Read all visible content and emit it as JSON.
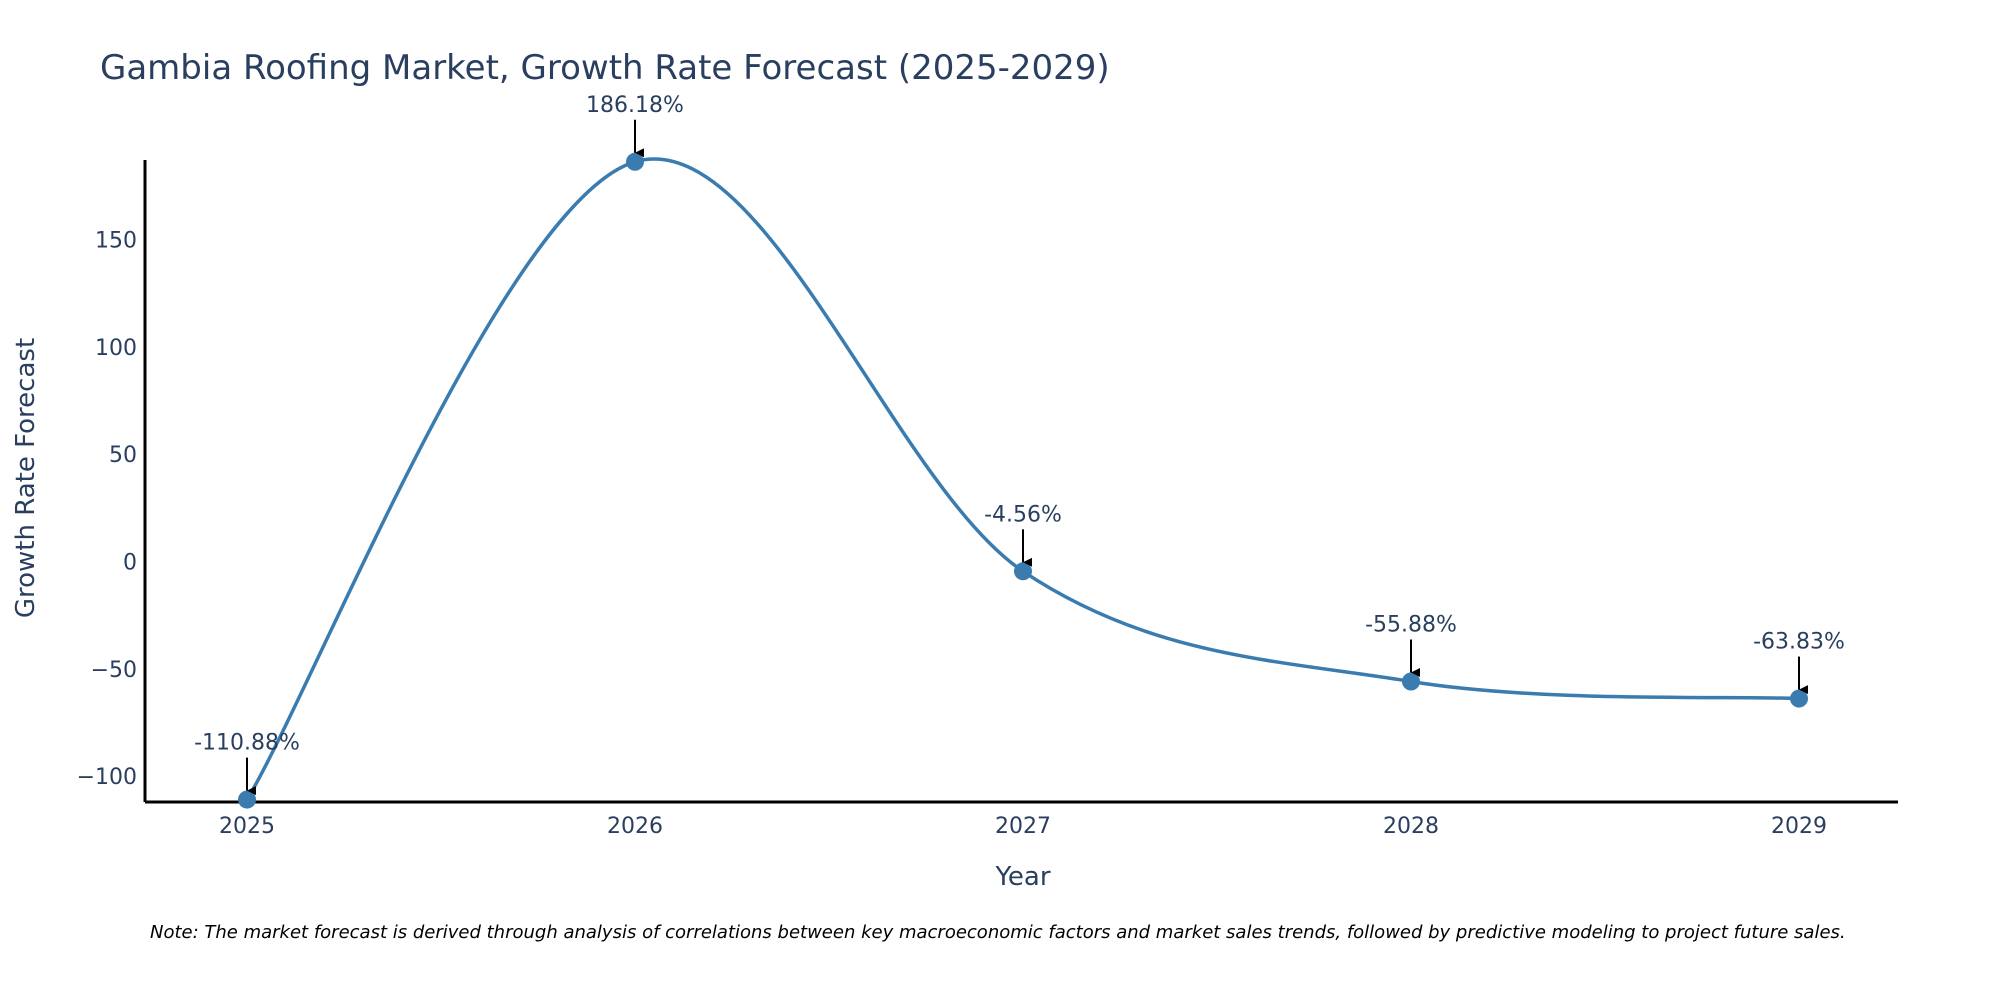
{
  "chart_data": {
    "type": "line",
    "title": "Gambia Roofing Market, Growth Rate Forecast (2025-2029)",
    "xlabel": "Year",
    "ylabel": "Growth Rate Forecast",
    "categories": [
      "2025",
      "2026",
      "2027",
      "2028",
      "2029"
    ],
    "series": [
      {
        "name": "Growth Rate Forecast",
        "values": [
          -110.88,
          186.18,
          -4.56,
          -55.88,
          -63.83
        ],
        "labels": [
          "-110.88%",
          "186.18%",
          "-4.56%",
          "-55.88%",
          "-63.83%"
        ]
      }
    ],
    "ylim": [
      -112,
      187
    ],
    "yticks": [
      -100,
      -50,
      0,
      50,
      100,
      150
    ],
    "ytick_labels": [
      "−100",
      "−50",
      "0",
      "50",
      "100",
      "150"
    ],
    "grid": false,
    "line_color": "#3a7caf",
    "note": "Note: The market forecast is derived through analysis of correlations between key macroeconomic factors and market sales trends, followed by predictive modeling to project future sales."
  }
}
